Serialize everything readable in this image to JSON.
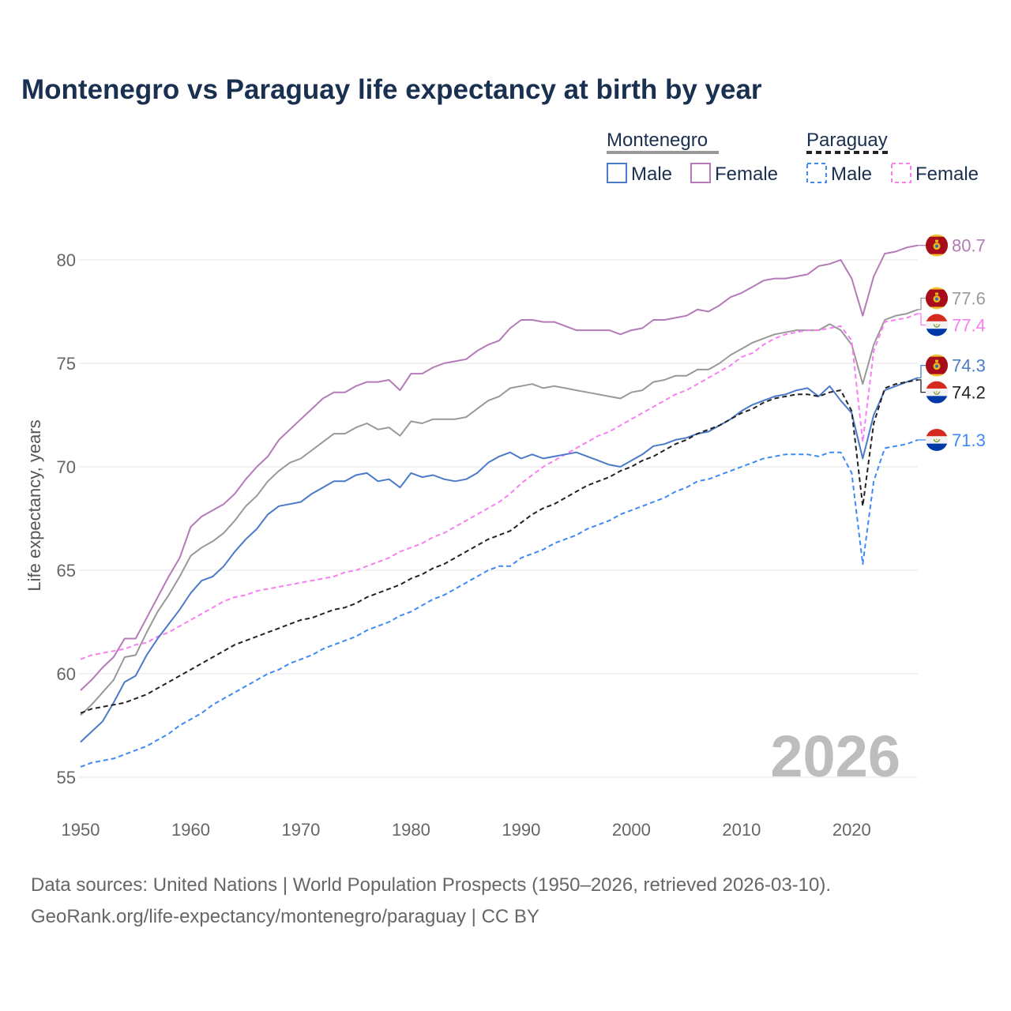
{
  "title": "Montenegro vs Paraguay life expectancy at birth by year",
  "sources": [
    "Data sources: United Nations | World Population Prospects (1950–2026, retrieved 2026-03-10).",
    "GeoRank.org/life-expectancy/montenegro/paraguay | CC BY"
  ],
  "year_watermark": "2026",
  "legend": {
    "groups": [
      {
        "name": "Montenegro",
        "items": [
          "Male",
          "Female"
        ]
      },
      {
        "name": "Paraguay",
        "items": [
          "Male",
          "Female"
        ]
      }
    ]
  },
  "chart_data": {
    "type": "line",
    "title": "Montenegro vs Paraguay life expectancy at birth by year",
    "xlabel": "",
    "ylabel": "Life expectancy, years",
    "xlim": [
      1950,
      2026
    ],
    "ylim": [
      55,
      80
    ],
    "xticks": [
      1950,
      1960,
      1970,
      1980,
      1990,
      2000,
      2010,
      2020
    ],
    "yticks": [
      55,
      60,
      65,
      70,
      75,
      80
    ],
    "grid": true,
    "legend_position": "top-right",
    "x_start": 1950,
    "series": [
      {
        "name": "Montenegro Female",
        "country": "Montenegro",
        "color": "#b57ab8",
        "dash": false,
        "end_label": "80.7",
        "values": [
          59.2,
          59.7,
          60.3,
          60.8,
          61.7,
          61.7,
          62.7,
          63.7,
          64.7,
          65.6,
          67.1,
          67.6,
          67.9,
          68.2,
          68.7,
          69.4,
          70.0,
          70.5,
          71.3,
          71.8,
          72.3,
          72.8,
          73.3,
          73.6,
          73.6,
          73.9,
          74.1,
          74.1,
          74.2,
          73.7,
          74.5,
          74.5,
          74.8,
          75.0,
          75.1,
          75.2,
          75.6,
          75.9,
          76.1,
          76.7,
          77.1,
          77.1,
          77.0,
          77.0,
          76.8,
          76.6,
          76.6,
          76.6,
          76.6,
          76.4,
          76.6,
          76.7,
          77.1,
          77.1,
          77.2,
          77.3,
          77.6,
          77.5,
          77.8,
          78.2,
          78.4,
          78.7,
          79.0,
          79.1,
          79.1,
          79.2,
          79.3,
          79.7,
          79.8,
          80.0,
          79.1,
          77.3,
          79.2,
          80.3,
          80.4,
          80.6,
          80.7
        ]
      },
      {
        "name": "Montenegro",
        "country": "Montenegro",
        "color": "#999999",
        "dash": false,
        "end_label": "77.6",
        "values": [
          58.0,
          58.5,
          59.1,
          59.7,
          60.8,
          60.9,
          62.0,
          63.0,
          63.8,
          64.7,
          65.7,
          66.1,
          66.4,
          66.8,
          67.4,
          68.1,
          68.6,
          69.3,
          69.8,
          70.2,
          70.4,
          70.8,
          71.2,
          71.6,
          71.6,
          71.9,
          72.1,
          71.8,
          71.9,
          71.5,
          72.2,
          72.1,
          72.3,
          72.3,
          72.3,
          72.4,
          72.8,
          73.2,
          73.4,
          73.8,
          73.9,
          74.0,
          73.8,
          73.9,
          73.8,
          73.7,
          73.6,
          73.5,
          73.4,
          73.3,
          73.6,
          73.7,
          74.1,
          74.2,
          74.4,
          74.4,
          74.7,
          74.7,
          75.0,
          75.4,
          75.7,
          76.0,
          76.2,
          76.4,
          76.5,
          76.6,
          76.6,
          76.6,
          76.9,
          76.6,
          75.9,
          74.0,
          75.9,
          77.1,
          77.3,
          77.4,
          77.6
        ]
      },
      {
        "name": "Paraguay Female",
        "country": "Paraguay",
        "color": "#f77ff0",
        "dash": true,
        "end_label": "77.4",
        "values": [
          60.7,
          60.9,
          61.0,
          61.1,
          61.2,
          61.4,
          61.5,
          61.8,
          62.0,
          62.3,
          62.6,
          62.9,
          63.2,
          63.5,
          63.7,
          63.8,
          64.0,
          64.1,
          64.2,
          64.3,
          64.4,
          64.5,
          64.6,
          64.7,
          64.9,
          65.0,
          65.2,
          65.4,
          65.6,
          65.9,
          66.1,
          66.3,
          66.6,
          66.8,
          67.1,
          67.4,
          67.7,
          68.0,
          68.3,
          68.7,
          69.2,
          69.6,
          70.0,
          70.3,
          70.6,
          70.9,
          71.2,
          71.5,
          71.7,
          72.0,
          72.3,
          72.6,
          72.9,
          73.2,
          73.5,
          73.7,
          74.0,
          74.3,
          74.6,
          74.9,
          75.3,
          75.5,
          75.9,
          76.2,
          76.4,
          76.5,
          76.6,
          76.6,
          76.7,
          76.8,
          76.1,
          71.2,
          75.6,
          77.0,
          77.1,
          77.2,
          77.4
        ]
      },
      {
        "name": "Montenegro Male",
        "country": "Montenegro",
        "color": "#4a7ac8",
        "dash": false,
        "end_label": "74.3",
        "values": [
          56.7,
          57.2,
          57.7,
          58.6,
          59.6,
          59.9,
          60.9,
          61.7,
          62.4,
          63.1,
          63.9,
          64.5,
          64.7,
          65.2,
          65.9,
          66.5,
          67.0,
          67.7,
          68.1,
          68.2,
          68.3,
          68.7,
          69.0,
          69.3,
          69.3,
          69.6,
          69.7,
          69.3,
          69.4,
          69.0,
          69.7,
          69.5,
          69.6,
          69.4,
          69.3,
          69.4,
          69.7,
          70.2,
          70.5,
          70.7,
          70.4,
          70.6,
          70.4,
          70.5,
          70.6,
          70.7,
          70.5,
          70.3,
          70.1,
          70.0,
          70.3,
          70.6,
          71.0,
          71.1,
          71.3,
          71.4,
          71.6,
          71.7,
          72.0,
          72.3,
          72.7,
          73.0,
          73.2,
          73.4,
          73.5,
          73.7,
          73.8,
          73.4,
          73.9,
          73.2,
          72.6,
          70.4,
          72.5,
          73.7,
          73.9,
          74.1,
          74.3
        ]
      },
      {
        "name": "Paraguay",
        "country": "Paraguay",
        "color": "#222222",
        "dash": true,
        "end_label": "74.2",
        "values": [
          58.1,
          58.3,
          58.4,
          58.5,
          58.6,
          58.8,
          59.0,
          59.3,
          59.6,
          59.9,
          60.2,
          60.5,
          60.8,
          61.1,
          61.4,
          61.6,
          61.8,
          62.0,
          62.2,
          62.4,
          62.6,
          62.7,
          62.9,
          63.1,
          63.2,
          63.4,
          63.7,
          63.9,
          64.1,
          64.3,
          64.6,
          64.8,
          65.1,
          65.3,
          65.6,
          65.9,
          66.2,
          66.5,
          66.7,
          66.9,
          67.3,
          67.7,
          68.0,
          68.2,
          68.5,
          68.8,
          69.1,
          69.3,
          69.5,
          69.8,
          70.0,
          70.3,
          70.5,
          70.8,
          71.1,
          71.3,
          71.6,
          71.8,
          72.0,
          72.3,
          72.6,
          72.8,
          73.1,
          73.3,
          73.4,
          73.5,
          73.5,
          73.4,
          73.6,
          73.7,
          72.7,
          68.1,
          72.1,
          73.8,
          74.0,
          74.1,
          74.2
        ]
      },
      {
        "name": "Paraguay Male",
        "country": "Paraguay",
        "color": "#3d8af7",
        "dash": true,
        "end_label": "71.3",
        "values": [
          55.5,
          55.7,
          55.8,
          55.9,
          56.1,
          56.3,
          56.5,
          56.8,
          57.1,
          57.5,
          57.8,
          58.1,
          58.5,
          58.8,
          59.1,
          59.4,
          59.7,
          60.0,
          60.2,
          60.5,
          60.7,
          60.9,
          61.2,
          61.4,
          61.6,
          61.8,
          62.1,
          62.3,
          62.5,
          62.8,
          63.0,
          63.3,
          63.6,
          63.8,
          64.1,
          64.4,
          64.7,
          65.0,
          65.2,
          65.2,
          65.6,
          65.8,
          66.0,
          66.3,
          66.5,
          66.7,
          67.0,
          67.2,
          67.4,
          67.7,
          67.9,
          68.1,
          68.3,
          68.5,
          68.8,
          69.0,
          69.3,
          69.4,
          69.6,
          69.8,
          70.0,
          70.2,
          70.4,
          70.5,
          70.6,
          70.6,
          70.6,
          70.5,
          70.7,
          70.7,
          69.7,
          65.3,
          69.3,
          70.9,
          71.0,
          71.1,
          71.3
        ]
      }
    ]
  }
}
